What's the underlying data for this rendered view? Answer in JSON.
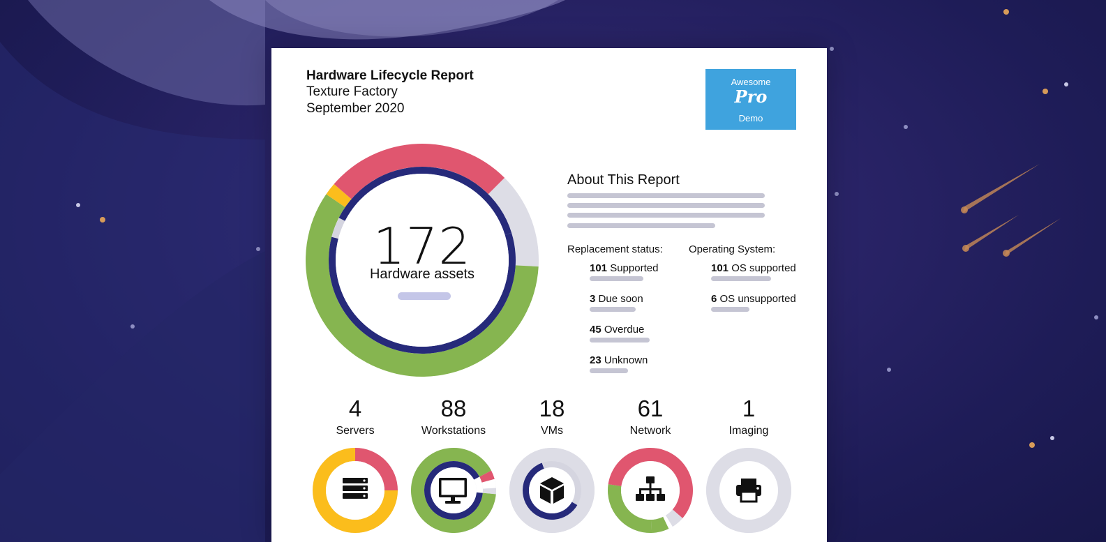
{
  "header": {
    "title": "Hardware Lifecycle Report",
    "organization": "Texture Factory",
    "date": "September 2020"
  },
  "logo": {
    "top_text": "Awesome",
    "brand_text": "Pro",
    "bottom_text": "Demo",
    "color": "#3fa3de"
  },
  "summary": {
    "total_value": "172",
    "total_label": "Hardware assets"
  },
  "about": {
    "heading": "About This Report"
  },
  "replacement_status": {
    "heading": "Replacement status:",
    "items": [
      {
        "count": "101",
        "label": "Supported"
      },
      {
        "count": "3",
        "label": "Due soon"
      },
      {
        "count": "45",
        "label": "Overdue"
      },
      {
        "count": "23",
        "label": "Unknown"
      }
    ]
  },
  "operating_system": {
    "heading": "Operating System:",
    "items": [
      {
        "count": "101",
        "label": "OS supported"
      },
      {
        "count": "6",
        "label": "OS unsupported"
      }
    ]
  },
  "categories": [
    {
      "count": "4",
      "label": "Servers",
      "icon": "server-icon"
    },
    {
      "count": "88",
      "label": "Workstations",
      "icon": "monitor-icon"
    },
    {
      "count": "18",
      "label": "VMs",
      "icon": "cube-icon"
    },
    {
      "count": "61",
      "label": "Network",
      "icon": "network-icon"
    },
    {
      "count": "1",
      "label": "Imaging",
      "icon": "printer-icon"
    }
  ],
  "colors": {
    "supported": "#86b550",
    "due_soon": "#fbbd1c",
    "overdue": "#e0566f",
    "unknown": "#dddde6",
    "os_supported": "#262a7a",
    "os_unsupported": "#d5d5e0"
  }
}
